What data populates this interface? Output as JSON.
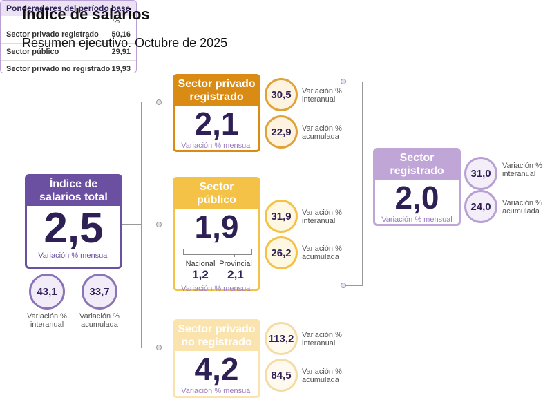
{
  "header": {
    "title": "Índice de salarios",
    "subtitle": "Resumen ejecutivo. Octubre de 2025"
  },
  "total": {
    "label": [
      "Índice de",
      "salarios total"
    ],
    "value": "2,5",
    "caption": "Variación % mensual",
    "interanual": "43,1",
    "interanual_caption": [
      "Variación %",
      "interanual"
    ],
    "acumulada": "33,7",
    "acumulada_caption": [
      "Variación %",
      "acumulada"
    ]
  },
  "sectors": [
    {
      "label": [
        "Sector privado",
        "registrado"
      ],
      "value": "2,1",
      "caption": "Variación % mensual",
      "interanual": "30,5",
      "interanual_caption": [
        "Variación %",
        "interanual"
      ],
      "acumulada": "22,9",
      "acumulada_caption": [
        "Variación %",
        "acumulada"
      ]
    },
    {
      "label": [
        "Sector",
        "público"
      ],
      "value": "1,9",
      "breakdown": [
        {
          "label": "Nacional",
          "value": "1,2"
        },
        {
          "label": "Provincial",
          "value": "2,1"
        }
      ],
      "caption": "Variación % mensual",
      "interanual": "31,9",
      "interanual_caption": [
        "Variación %",
        "interanual"
      ],
      "acumulada": "26,2",
      "acumulada_caption": [
        "Variación %",
        "acumulada"
      ]
    },
    {
      "label": [
        "Sector privado",
        "no registrado"
      ],
      "value": "4,2",
      "caption": "Variación % mensual",
      "interanual": "113,2",
      "interanual_caption": [
        "Variación %",
        "interanual"
      ],
      "acumulada": "84,5",
      "acumulada_caption": [
        "Variación %",
        "acumulada"
      ]
    }
  ],
  "registrado": {
    "label": [
      "Sector",
      "registrado"
    ],
    "value": "2,0",
    "caption": "Variación % mensual",
    "interanual": "31,0",
    "interanual_caption": [
      "Variación %",
      "interanual"
    ],
    "acumulada": "24,0",
    "acumulada_caption": [
      "Variación %",
      "acumulada"
    ]
  },
  "weights": {
    "title": "Ponderadores del período base",
    "unit": "%",
    "rows": [
      [
        "Sector privado registrado",
        "50,16"
      ],
      [
        "Sector público",
        "29,91"
      ],
      [
        "Sector privado no registrado",
        "19,93"
      ]
    ]
  }
}
